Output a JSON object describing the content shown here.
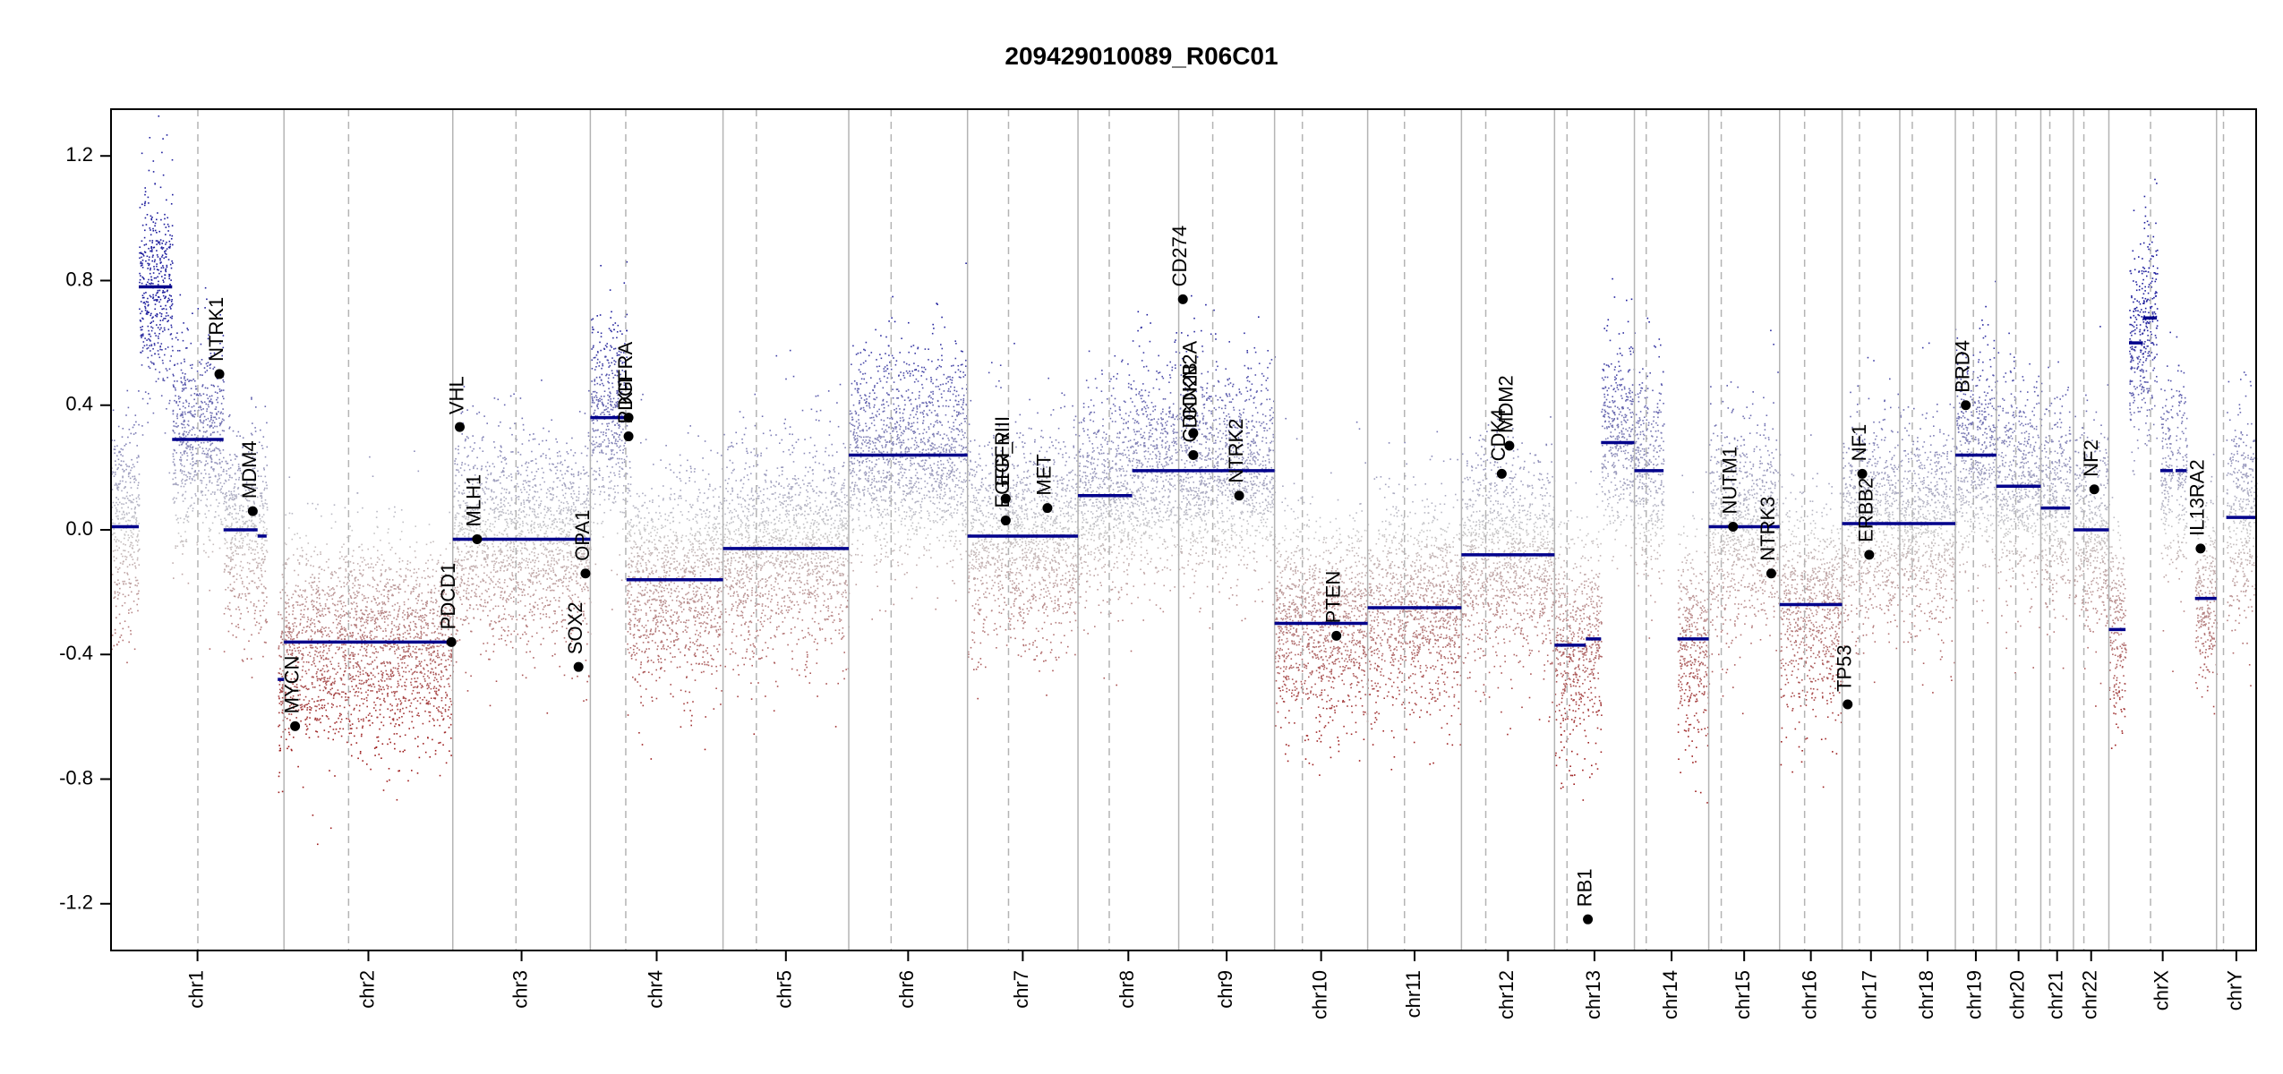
{
  "chart_data": {
    "type": "scatter",
    "title": "209429010089_R06C01",
    "xlabel": "",
    "ylabel": "",
    "ylim": [
      -1.35,
      1.35
    ],
    "y_ticks": [
      -1.2,
      -0.8,
      -0.4,
      0.0,
      0.4,
      0.8,
      1.2
    ],
    "y_tick_labels": [
      "-1.2",
      "-0.8",
      "-0.4",
      "0.0",
      "0.4",
      "0.8",
      "1.2"
    ],
    "chromosomes": [
      {
        "name": "chr1",
        "start": 0,
        "end": 249,
        "centromere": 125
      },
      {
        "name": "chr2",
        "start": 249,
        "end": 492,
        "centromere": 342
      },
      {
        "name": "chr3",
        "start": 492,
        "end": 690,
        "centromere": 583
      },
      {
        "name": "chr4",
        "start": 690,
        "end": 881,
        "centromere": 741
      },
      {
        "name": "chr5",
        "start": 881,
        "end": 1062,
        "centromere": 929
      },
      {
        "name": "chr6",
        "start": 1062,
        "end": 1233,
        "centromere": 1123
      },
      {
        "name": "chr7",
        "start": 1233,
        "end": 1392,
        "centromere": 1292
      },
      {
        "name": "chr8",
        "start": 1392,
        "end": 1537,
        "centromere": 1437
      },
      {
        "name": "chr9",
        "start": 1537,
        "end": 1675,
        "centromere": 1586
      },
      {
        "name": "chr10",
        "start": 1675,
        "end": 1809,
        "centromere": 1715
      },
      {
        "name": "chr11",
        "start": 1809,
        "end": 1944,
        "centromere": 1862
      },
      {
        "name": "chr12",
        "start": 1944,
        "end": 2078,
        "centromere": 1979
      },
      {
        "name": "chr13",
        "start": 2078,
        "end": 2193,
        "centromere": 2096
      },
      {
        "name": "chr14",
        "start": 2193,
        "end": 2300,
        "centromere": 2210
      },
      {
        "name": "chr15",
        "start": 2300,
        "end": 2402,
        "centromere": 2318
      },
      {
        "name": "chr16",
        "start": 2402,
        "end": 2492,
        "centromere": 2438
      },
      {
        "name": "chr17",
        "start": 2492,
        "end": 2575,
        "centromere": 2517
      },
      {
        "name": "chr18",
        "start": 2575,
        "end": 2655,
        "centromere": 2593
      },
      {
        "name": "chr19",
        "start": 2655,
        "end": 2714,
        "centromere": 2681
      },
      {
        "name": "chr20",
        "start": 2714,
        "end": 2778,
        "centromere": 2742
      },
      {
        "name": "chr21",
        "start": 2778,
        "end": 2825,
        "centromere": 2791
      },
      {
        "name": "chr22",
        "start": 2825,
        "end": 2876,
        "centromere": 2840
      },
      {
        "name": "chrX",
        "start": 2876,
        "end": 3031,
        "centromere": 2936
      },
      {
        "name": "chrY",
        "start": 3031,
        "end": 3088,
        "centromere": 3041
      }
    ],
    "segments": [
      {
        "start": 0,
        "end": 40,
        "value": 0.01
      },
      {
        "start": 40,
        "end": 88,
        "value": 0.78
      },
      {
        "start": 88,
        "end": 162,
        "value": 0.29
      },
      {
        "start": 162,
        "end": 211,
        "value": 0.0
      },
      {
        "start": 211,
        "end": 224,
        "value": -0.02
      },
      {
        "start": 240,
        "end": 249,
        "value": -0.48
      },
      {
        "start": 249,
        "end": 492,
        "value": -0.36
      },
      {
        "start": 492,
        "end": 690,
        "value": -0.03
      },
      {
        "start": 690,
        "end": 742,
        "value": 0.36
      },
      {
        "start": 742,
        "end": 881,
        "value": -0.16
      },
      {
        "start": 881,
        "end": 1062,
        "value": -0.06
      },
      {
        "start": 1062,
        "end": 1233,
        "value": 0.24
      },
      {
        "start": 1233,
        "end": 1392,
        "value": -0.02
      },
      {
        "start": 1392,
        "end": 1470,
        "value": 0.11
      },
      {
        "start": 1470,
        "end": 1675,
        "value": 0.19
      },
      {
        "start": 1675,
        "end": 1809,
        "value": -0.3
      },
      {
        "start": 1809,
        "end": 1944,
        "value": -0.25
      },
      {
        "start": 1944,
        "end": 2078,
        "value": -0.08
      },
      {
        "start": 2078,
        "end": 2123,
        "value": -0.37
      },
      {
        "start": 2123,
        "end": 2145,
        "value": -0.35
      },
      {
        "start": 2145,
        "end": 2193,
        "value": 0.28
      },
      {
        "start": 2193,
        "end": 2235,
        "value": 0.19
      },
      {
        "start": 2255,
        "end": 2300,
        "value": -0.35
      },
      {
        "start": 2300,
        "end": 2378,
        "value": 0.01
      },
      {
        "start": 2378,
        "end": 2402,
        "value": 0.01
      },
      {
        "start": 2402,
        "end": 2492,
        "value": -0.24
      },
      {
        "start": 2492,
        "end": 2575,
        "value": 0.02
      },
      {
        "start": 2575,
        "end": 2655,
        "value": 0.02
      },
      {
        "start": 2655,
        "end": 2714,
        "value": 0.24
      },
      {
        "start": 2714,
        "end": 2778,
        "value": 0.14
      },
      {
        "start": 2778,
        "end": 2820,
        "value": 0.07
      },
      {
        "start": 2825,
        "end": 2876,
        "value": 0.0
      },
      {
        "start": 2876,
        "end": 2900,
        "value": -0.32
      },
      {
        "start": 2905,
        "end": 2925,
        "value": 0.6
      },
      {
        "start": 2925,
        "end": 2945,
        "value": 0.68
      },
      {
        "start": 2950,
        "end": 2968,
        "value": 0.19
      },
      {
        "start": 2972,
        "end": 2988,
        "value": 0.19
      },
      {
        "start": 3000,
        "end": 3031,
        "value": -0.22
      },
      {
        "start": 3045,
        "end": 3088,
        "value": 0.04
      }
    ],
    "genes": [
      {
        "name": "NTRK1",
        "pos": 156,
        "value": 0.5
      },
      {
        "name": "MDM4",
        "pos": 204,
        "value": 0.06
      },
      {
        "name": "MYCN",
        "pos": 265,
        "value": -0.63
      },
      {
        "name": "PDCD1",
        "pos": 490,
        "value": -0.36
      },
      {
        "name": "VHL",
        "pos": 502,
        "value": 0.33
      },
      {
        "name": "MLH1",
        "pos": 527,
        "value": -0.03
      },
      {
        "name": "SOX2",
        "pos": 673,
        "value": -0.44
      },
      {
        "name": "OPA1",
        "pos": 683,
        "value": -0.14
      },
      {
        "name": "KIT",
        "pos": 745,
        "value": 0.36
      },
      {
        "name": "PDGFRA",
        "pos": 745,
        "value": 0.3
      },
      {
        "name": "EGFR",
        "pos": 1288,
        "value": 0.1
      },
      {
        "name": "EGFR_vIII",
        "pos": 1288,
        "value": 0.03
      },
      {
        "name": "MET",
        "pos": 1348,
        "value": 0.07
      },
      {
        "name": "CD274",
        "pos": 1543,
        "value": 0.74
      },
      {
        "name": "CDKN2A",
        "pos": 1558,
        "value": 0.31
      },
      {
        "name": "CDKN2B",
        "pos": 1558,
        "value": 0.24
      },
      {
        "name": "NTRK2",
        "pos": 1624,
        "value": 0.11
      },
      {
        "name": "PTEN",
        "pos": 1764,
        "value": -0.34
      },
      {
        "name": "CDK4",
        "pos": 2002,
        "value": 0.18
      },
      {
        "name": "MDM2",
        "pos": 2013,
        "value": 0.27
      },
      {
        "name": "RB1",
        "pos": 2126,
        "value": -1.25
      },
      {
        "name": "NUTM1",
        "pos": 2335,
        "value": 0.01
      },
      {
        "name": "NTRK3",
        "pos": 2390,
        "value": -0.14
      },
      {
        "name": "TP53",
        "pos": 2500,
        "value": -0.56
      },
      {
        "name": "NF1",
        "pos": 2521,
        "value": 0.18
      },
      {
        "name": "ERBB2",
        "pos": 2531,
        "value": -0.08
      },
      {
        "name": "BRD4",
        "pos": 2670,
        "value": 0.4
      },
      {
        "name": "NF2",
        "pos": 2855,
        "value": 0.13
      },
      {
        "name": "IL13RA2",
        "pos": 3008,
        "value": -0.06
      }
    ],
    "colors": {
      "gain": "#1c1c9c",
      "loss": "#9c1c1c",
      "neutral": "#c8c8c8",
      "segment": "#00008b",
      "chr_boundary": "#b4b4b4",
      "centromere": "#b4b4b4"
    },
    "grid": false,
    "legend": "none"
  }
}
